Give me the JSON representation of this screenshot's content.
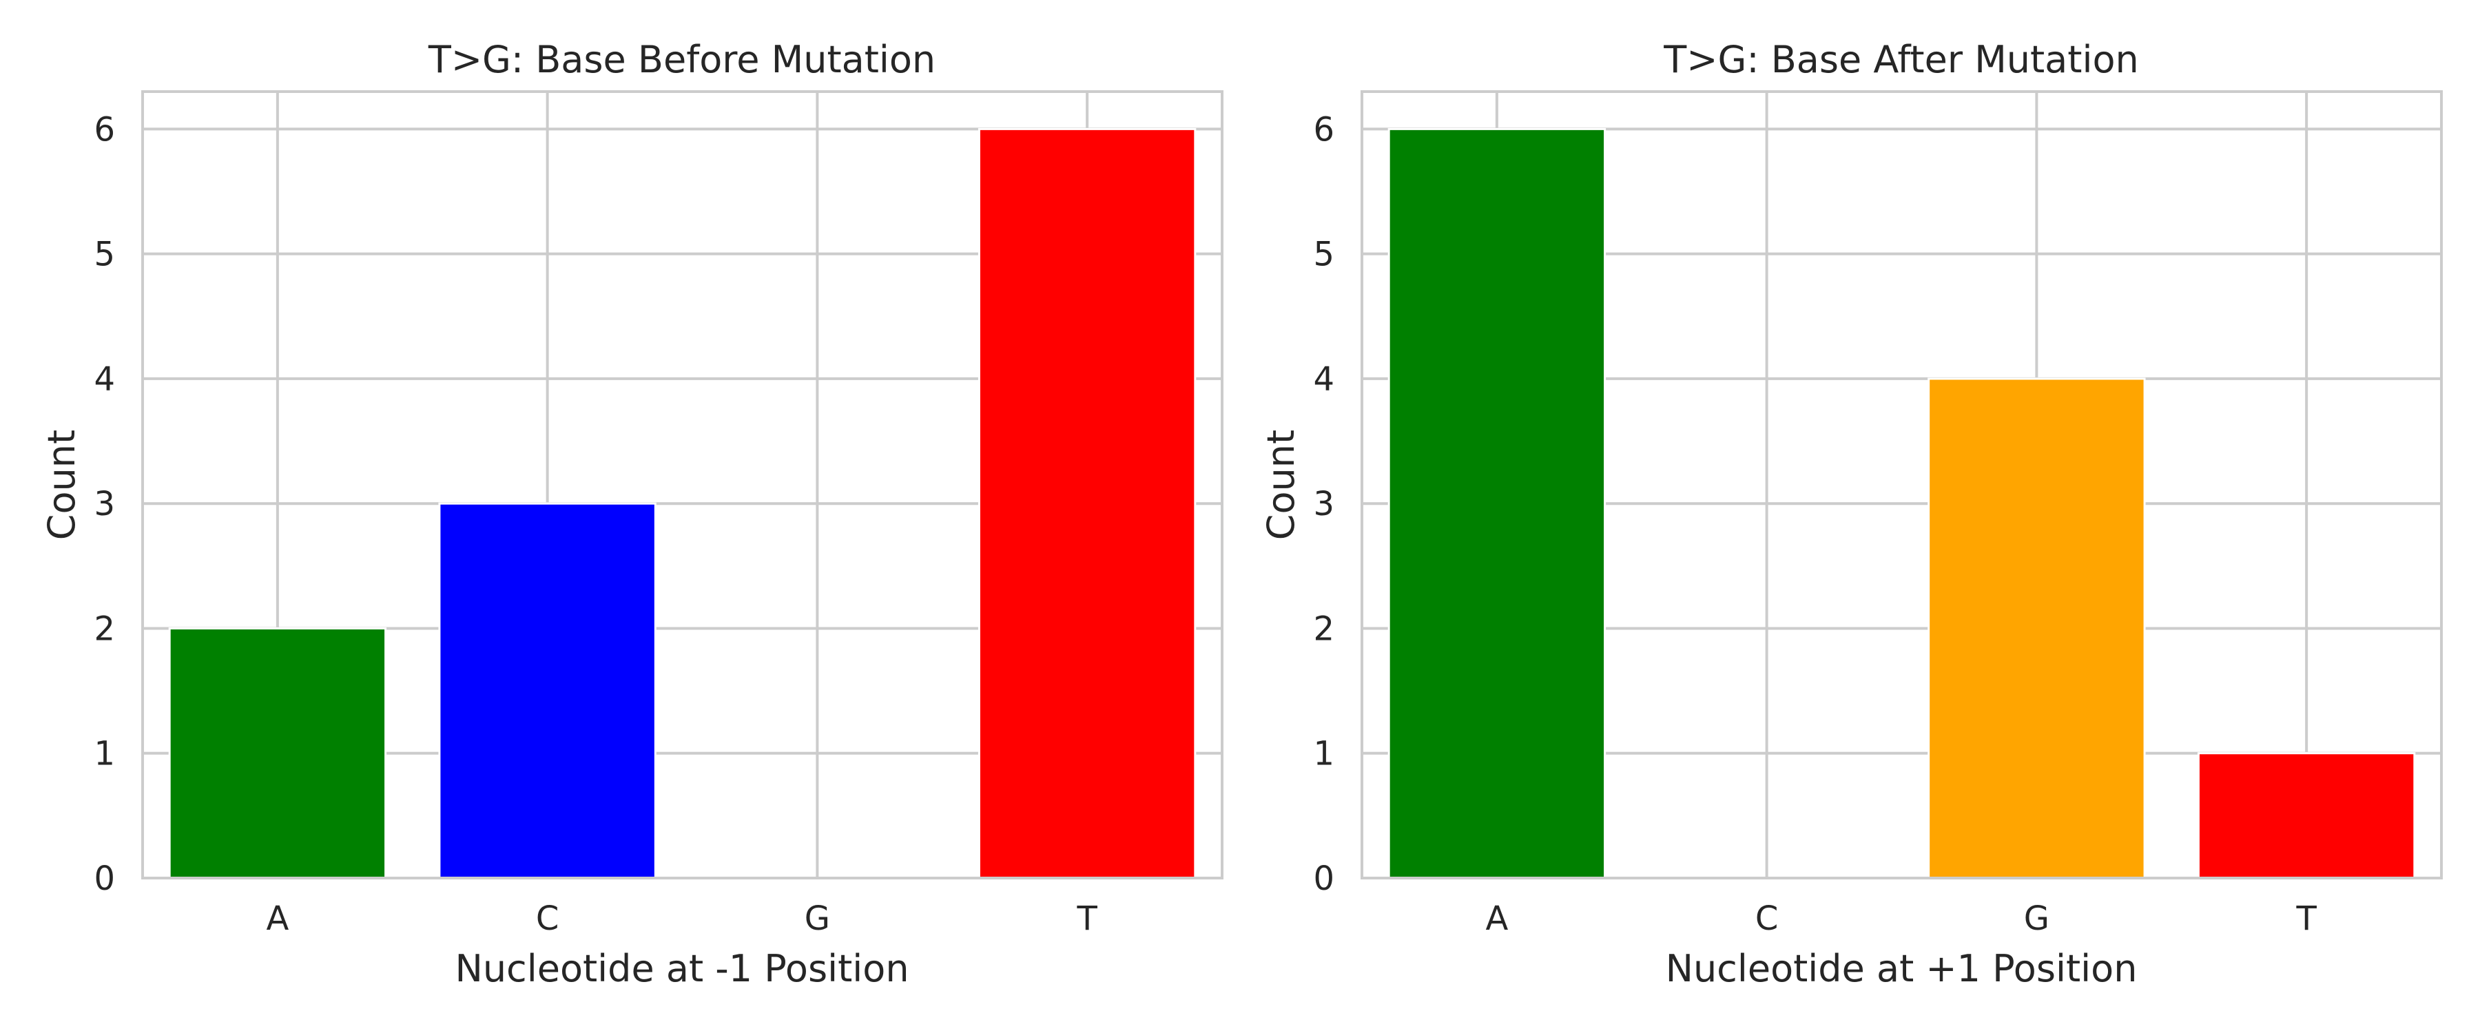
{
  "chart_data": [
    {
      "type": "bar",
      "title": "T>G: Base Before Mutation",
      "xlabel": "Nucleotide at -1 Position",
      "ylabel": "Count",
      "categories": [
        "A",
        "C",
        "G",
        "T"
      ],
      "values": [
        2,
        3,
        0,
        6
      ],
      "colors": [
        "#008000",
        "#0000ff",
        "#ffa500",
        "#ff0000"
      ],
      "ylim": [
        0,
        6.3
      ],
      "yticks": [
        "0",
        "1",
        "2",
        "3",
        "4",
        "5",
        "6"
      ],
      "grid": true,
      "legend": "none"
    },
    {
      "type": "bar",
      "title": "T>G: Base After Mutation",
      "xlabel": "Nucleotide at +1 Position",
      "ylabel": "Count",
      "categories": [
        "A",
        "C",
        "G",
        "T"
      ],
      "values": [
        6,
        0,
        4,
        1
      ],
      "colors": [
        "#008000",
        "#0000ff",
        "#ffa500",
        "#ff0000"
      ],
      "ylim": [
        0,
        6.3
      ],
      "yticks": [
        "0",
        "1",
        "2",
        "3",
        "4",
        "5",
        "6"
      ],
      "grid": true,
      "legend": "none"
    }
  ]
}
